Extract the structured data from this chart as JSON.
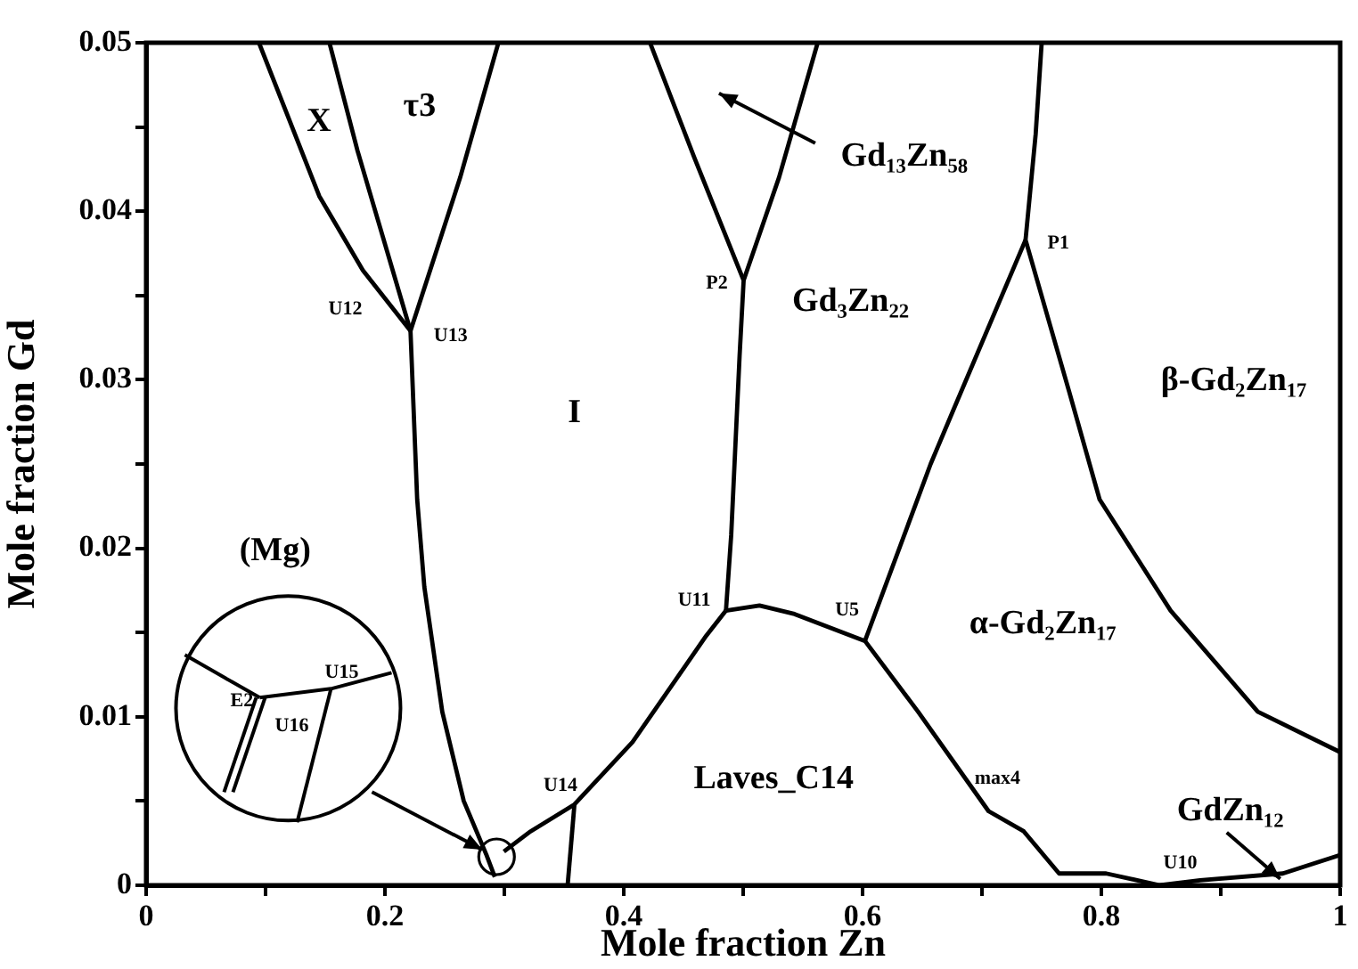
{
  "chart_data": {
    "type": "line",
    "xlabel": "Mole fraction Zn",
    "ylabel": "Mole fraction Gd",
    "xlim": [
      0,
      1
    ],
    "ylim": [
      0,
      0.05
    ],
    "xticks": [
      0,
      {
        "value": 0.1,
        "label": null
      },
      0.2,
      {
        "value": 0.3,
        "label": null
      },
      0.4,
      {
        "value": 0.5,
        "label": null
      },
      0.6,
      {
        "value": 0.7,
        "label": null
      },
      0.8,
      {
        "value": 0.9,
        "label": null
      },
      1
    ],
    "yticks": [
      0,
      {
        "value": 0.005,
        "label": null
      },
      0.01,
      {
        "value": 0.015,
        "label": null
      },
      0.02,
      {
        "value": 0.025,
        "label": null
      },
      0.03,
      {
        "value": 0.035,
        "label": null
      },
      0.04,
      {
        "value": 0.045,
        "label": null
      },
      0.05
    ],
    "grid": false,
    "legend": false,
    "marker": "none",
    "line_style": "solid",
    "series": [
      {
        "color": "#000000",
        "x": [
          0.0945,
          0.145,
          0.1815,
          0.2214
        ],
        "values": [
          0.05,
          0.0409,
          0.0365,
          0.0329
        ]
      },
      {
        "color": "#000000",
        "x": [
          0.1535,
          0.177,
          0.2214,
          0.227,
          0.233,
          0.248,
          0.266,
          0.285,
          0.292
        ],
        "values": [
          0.05,
          0.0436,
          0.0329,
          0.0229,
          0.0177,
          0.0103,
          0.005,
          0.0018,
          0.0005
        ]
      },
      {
        "color": "#000000",
        "x": [
          0.295,
          0.263,
          0.2214
        ],
        "values": [
          0.05,
          0.042,
          0.0329
        ]
      },
      {
        "color": "#000000",
        "x": [
          0.4856,
          0.469,
          0.4074,
          0.3587,
          0.322,
          0.2996
        ],
        "values": [
          0.0163,
          0.0148,
          0.0085,
          0.0048,
          0.0032,
          0.002
        ]
      },
      {
        "color": "#000000",
        "x": [
          0.353,
          0.3587
        ],
        "values": [
          0,
          0.0048
        ]
      },
      {
        "color": "#000000",
        "x": [
          0.422,
          0.459,
          0.5004,
          0.497,
          0.49,
          0.4856
        ],
        "values": [
          0.05,
          0.0432,
          0.0359,
          0.0314,
          0.0208,
          0.0163
        ]
      },
      {
        "color": "#000000",
        "x": [
          0.5624,
          0.53,
          0.5004
        ],
        "values": [
          0.05,
          0.042,
          0.0359
        ]
      },
      {
        "color": "#000000",
        "x": [
          0.75,
          0.745,
          0.7365,
          0.773,
          0.7985,
          0.858,
          0.931,
          1.0
        ],
        "values": [
          0.05,
          0.0446,
          0.0383,
          0.0293,
          0.0229,
          0.0163,
          0.0103,
          0.0079
        ]
      },
      {
        "color": "#000000",
        "x": [
          0.7365,
          0.676,
          0.657,
          0.602
        ],
        "values": [
          0.0383,
          0.0282,
          0.025,
          0.0145
        ]
      },
      {
        "color": "#000000",
        "x": [
          0.4856,
          0.5137,
          0.543,
          0.602,
          0.6465,
          0.7055,
          0.735,
          0.7646,
          0.804,
          0.849,
          0.8827,
          0.952,
          1.0
        ],
        "values": [
          0.0163,
          0.0166,
          0.0161,
          0.0145,
          0.0103,
          0.0044,
          0.0032,
          0.0007,
          0.0007,
          0,
          0.0003,
          0.0007,
          0.0018
        ]
      }
    ],
    "annotations": [
      "X",
      "τ3",
      "U12",
      "U13",
      "I",
      "P2",
      "Gd₃Zn₂₂",
      "Gd₁₃Zn₅₈",
      "P1",
      "β-Gd₂Zn₁₇",
      "(Mg)",
      "U11",
      "U5",
      "α-Gd₂Zn₁₇",
      "U14",
      "Laves_C14",
      "max4",
      "GdZn₁₂",
      "U10",
      "E2",
      "U16",
      "U15"
    ]
  }
}
